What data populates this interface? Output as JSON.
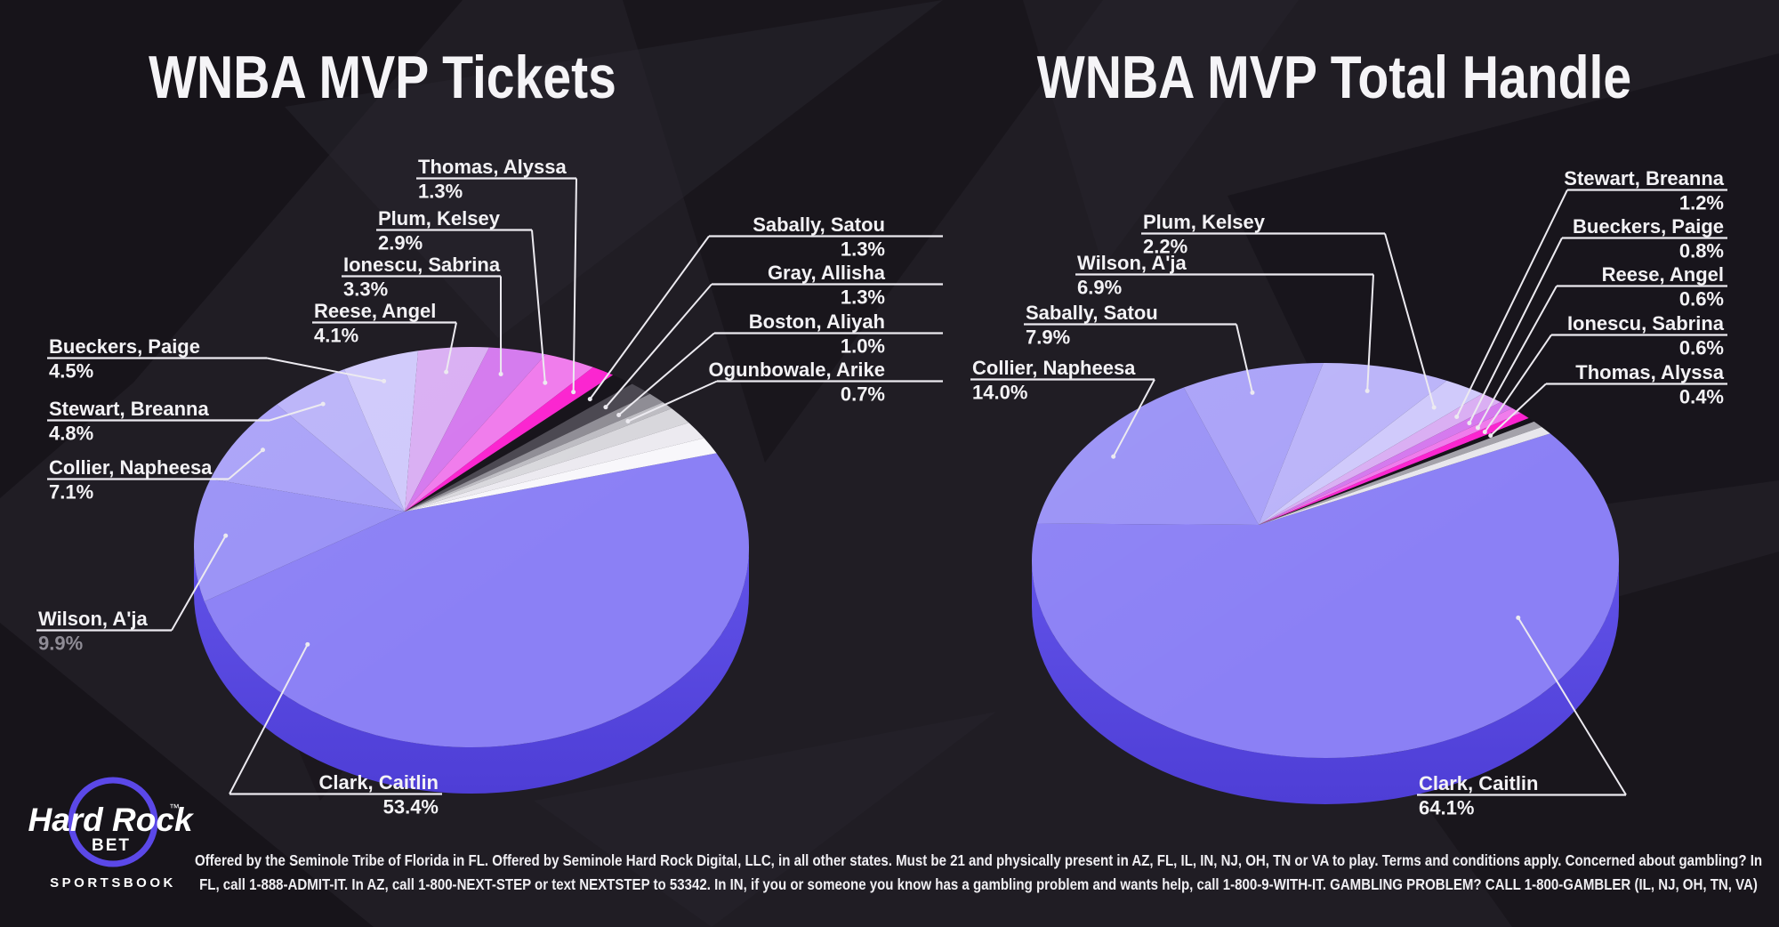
{
  "colors": {
    "background": "#201d24",
    "background_dark_shape": "#17141a",
    "background_light_shape": "#2a2730",
    "rim_top": "#6152e8",
    "rim_bottom": "#4e3ed6",
    "label_text": "#f3f2f5",
    "muted_pct": "#8f8c96",
    "leader_line": "#eceaf0",
    "logo_purple": "#5b48e8",
    "title_text": "#f5f4f7"
  },
  "chart_data": [
    {
      "type": "pie",
      "title": "WNBA MVP Tickets",
      "legend_position": "none",
      "note": "slices ordered clockwise from upper-right; empty names are unlabeled remainder slivers",
      "slices": [
        {
          "name": "Clark, Caitlin",
          "value": 53.4,
          "pct_label": "53.4%",
          "color": "#8b80f5"
        },
        {
          "name": "Wilson, A'ja",
          "value": 9.9,
          "pct_label": "9.9%",
          "color": "#9991f6"
        },
        {
          "name": "Collier, Napheesa",
          "value": 7.1,
          "pct_label": "7.1%",
          "color": "#a9a1f8"
        },
        {
          "name": "Stewart, Breanna",
          "value": 4.8,
          "pct_label": "4.8%",
          "color": "#bab3f9"
        },
        {
          "name": "Bueckers, Paige",
          "value": 4.5,
          "pct_label": "4.5%",
          "color": "#cfc9fb"
        },
        {
          "name": "Reese, Angel",
          "value": 4.1,
          "pct_label": "4.1%",
          "color": "#d9aef3"
        },
        {
          "name": "Ionescu, Sabrina",
          "value": 3.3,
          "pct_label": "3.3%",
          "color": "#d478ee"
        },
        {
          "name": "Plum, Kelsey",
          "value": 2.9,
          "pct_label": "2.9%",
          "color": "#f07aec"
        },
        {
          "name": "Thomas, Alyssa",
          "value": 1.3,
          "pct_label": "1.3%",
          "color": "#fb22cf"
        },
        {
          "name": "Sabally, Satou",
          "value": 1.3,
          "pct_label": "1.3%",
          "color": "#141118"
        },
        {
          "name": "Gray, Allisha",
          "value": 1.3,
          "pct_label": "1.3%",
          "color": "#49464f"
        },
        {
          "name": "Boston, Aliyah",
          "value": 1.0,
          "pct_label": "1.0%",
          "color": "#8e8c94"
        },
        {
          "name": "Ogunbowale, Arike",
          "value": 0.7,
          "pct_label": "0.7%",
          "color": "#bdbcc2"
        },
        {
          "name": "",
          "value": 1.5,
          "pct_label": "",
          "color": "#d8d7dc"
        },
        {
          "name": "",
          "value": 1.5,
          "pct_label": "",
          "color": "#eceaf0"
        },
        {
          "name": "",
          "value": 1.4,
          "pct_label": "",
          "color": "#f8f7fb"
        }
      ]
    },
    {
      "type": "pie",
      "title": "WNBA MVP Total Handle",
      "legend_position": "none",
      "note": "slices ordered clockwise from upper-right; empty names are unlabeled remainder slivers",
      "slices": [
        {
          "name": "Clark, Caitlin",
          "value": 64.1,
          "pct_label": "64.1%",
          "color": "#8b80f5"
        },
        {
          "name": "Collier, Napheesa",
          "value": 14.0,
          "pct_label": "14.0%",
          "color": "#9991f6"
        },
        {
          "name": "Sabally, Satou",
          "value": 7.9,
          "pct_label": "7.9%",
          "color": "#a9a1f8"
        },
        {
          "name": "Wilson, A'ja",
          "value": 6.9,
          "pct_label": "6.9%",
          "color": "#bab3f9"
        },
        {
          "name": "Plum, Kelsey",
          "value": 2.2,
          "pct_label": "2.2%",
          "color": "#cfc9fb"
        },
        {
          "name": "Stewart, Breanna",
          "value": 1.2,
          "pct_label": "1.2%",
          "color": "#d9aef3"
        },
        {
          "name": "Bueckers, Paige",
          "value": 0.8,
          "pct_label": "0.8%",
          "color": "#d478ee"
        },
        {
          "name": "Reese, Angel",
          "value": 0.6,
          "pct_label": "0.6%",
          "color": "#f07aec"
        },
        {
          "name": "Ionescu, Sabrina",
          "value": 0.6,
          "pct_label": "0.6%",
          "color": "#fb22cf"
        },
        {
          "name": "Thomas, Alyssa",
          "value": 0.4,
          "pct_label": "0.4%",
          "color": "#141118"
        },
        {
          "name": "",
          "value": 0.6,
          "pct_label": "",
          "color": "#a3a1a9"
        },
        {
          "name": "",
          "value": 0.7,
          "pct_label": "",
          "color": "#e8e7ec"
        }
      ]
    }
  ],
  "logo": {
    "brand": "Hard Rock",
    "trademark": "™",
    "bet": "BET",
    "subtitle": "SPORTSBOOK"
  },
  "disclaimer": {
    "line1": "Offered by the Seminole Tribe of Florida in FL. Offered by Seminole Hard Rock Digital, LLC, in all other states. Must be 21 and physically present in AZ, FL, IL, IN, NJ, OH, TN or VA to play. Terms and conditions apply. Concerned about gambling? In",
    "line2": "FL, call 1-888-ADMIT-IT. In AZ, call 1-800-NEXT-STEP or text NEXTSTEP to 53342. In IN, if you or someone you know has a gambling problem and wants help, call 1-800-9-WITH-IT. GAMBLING PROBLEM? CALL 1-800-GAMBLER (IL, NJ, OH, TN, VA)"
  }
}
